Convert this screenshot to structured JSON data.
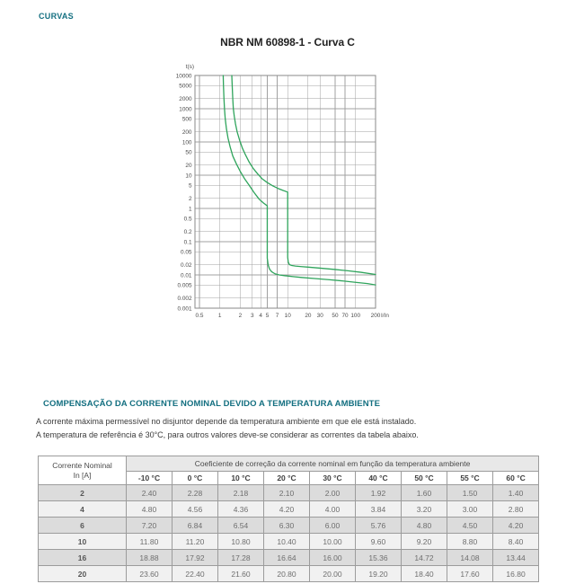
{
  "page": {
    "section_label": "CURVAS",
    "accent_color": "#136f80"
  },
  "chart_data": {
    "type": "line",
    "title": "NBR NM 60898-1 - Curva C",
    "xlabel": "I/In",
    "ylabel": "t(s)",
    "x_scale": "log",
    "y_scale": "log",
    "grid": true,
    "x_range": [
      0.43,
      200
    ],
    "y_range": [
      0.001,
      10000
    ],
    "x_ticks": [
      0.5,
      1,
      2,
      3,
      4,
      5,
      7,
      10,
      20,
      30,
      50,
      70,
      100,
      200
    ],
    "y_ticks": [
      10000,
      5000,
      2000,
      1000,
      500,
      200,
      100,
      50,
      20,
      10,
      5,
      2,
      1,
      0.5,
      0.2,
      0.1,
      0.05,
      0.02,
      0.01,
      0.005,
      0.002,
      0.001
    ],
    "curve_color": "#2fa45c",
    "grid_color": "#a0a0a0",
    "border_color": "#8a8a8a",
    "tick_color": "#4a4a4a",
    "series": [
      {
        "name": "curva-limite-inferior",
        "points": [
          [
            1.12,
            10000
          ],
          [
            1.13,
            5000
          ],
          [
            1.15,
            2000
          ],
          [
            1.17,
            1000
          ],
          [
            1.2,
            500
          ],
          [
            1.25,
            250
          ],
          [
            1.32,
            130
          ],
          [
            1.42,
            70
          ],
          [
            1.55,
            38
          ],
          [
            1.75,
            22
          ],
          [
            2.0,
            13
          ],
          [
            2.3,
            8
          ],
          [
            2.7,
            5
          ],
          [
            3.2,
            3
          ],
          [
            3.8,
            1.9
          ],
          [
            4.4,
            1.45
          ],
          [
            5,
            1.2
          ],
          [
            5,
            0.032
          ],
          [
            5.15,
            0.02
          ],
          [
            5.4,
            0.015
          ],
          [
            5.8,
            0.0125
          ],
          [
            6.5,
            0.0108
          ],
          [
            7.5,
            0.01
          ],
          [
            9,
            0.0095
          ],
          [
            12,
            0.0089
          ],
          [
            16,
            0.0084
          ],
          [
            25,
            0.0078
          ],
          [
            40,
            0.0072
          ],
          [
            60,
            0.0067
          ],
          [
            100,
            0.006
          ],
          [
            150,
            0.0055
          ],
          [
            200,
            0.005
          ]
        ]
      },
      {
        "name": "curva-limite-superior",
        "points": [
          [
            1.5,
            10000
          ],
          [
            1.52,
            5000
          ],
          [
            1.55,
            2000
          ],
          [
            1.58,
            1000
          ],
          [
            1.63,
            600
          ],
          [
            1.7,
            350
          ],
          [
            1.8,
            200
          ],
          [
            1.95,
            115
          ],
          [
            2.15,
            65
          ],
          [
            2.4,
            40
          ],
          [
            2.7,
            25
          ],
          [
            3.1,
            16
          ],
          [
            3.6,
            11
          ],
          [
            4.2,
            7.8
          ],
          [
            5.0,
            6.0
          ],
          [
            6.0,
            4.8
          ],
          [
            7.2,
            4.0
          ],
          [
            8.5,
            3.5
          ],
          [
            10,
            3.1
          ],
          [
            10,
            0.034
          ],
          [
            10.2,
            0.024
          ],
          [
            10.6,
            0.0205
          ],
          [
            11.5,
            0.0192
          ],
          [
            13,
            0.0185
          ],
          [
            16,
            0.0178
          ],
          [
            20,
            0.0172
          ],
          [
            30,
            0.016
          ],
          [
            50,
            0.0146
          ],
          [
            80,
            0.0132
          ],
          [
            120,
            0.012
          ],
          [
            200,
            0.0103
          ]
        ]
      }
    ]
  },
  "compensation": {
    "heading": "COMPENSAÇÃO DA CORRENTE NOMINAL DEVIDO A TEMPERATURA AMBIENTE",
    "line1": "A corrente máxima permessível no disjuntor depende da temperatura ambiente em que ele está instalado.",
    "line2": "A temperatura de referência é 30°C, para outros valores deve-se considerar as correntes da tabela abaixo."
  },
  "table": {
    "col0_header_line1": "Corrente Nominal",
    "col0_header_line2": "In [A]",
    "span_header": "Coeficiente de correção da corrente nominal em função da temperatura ambiente",
    "temp_headers": [
      "-10 °C",
      "0 °C",
      "10 °C",
      "20 °C",
      "30 °C",
      "40 °C",
      "50 °C",
      "55 °C",
      "60 °C"
    ],
    "rows": [
      {
        "in": "2",
        "coefficients": [
          "2.40",
          "2.28",
          "2.18",
          "2.10",
          "2.00",
          "1.92",
          "1.60",
          "1.50",
          "1.40"
        ]
      },
      {
        "in": "4",
        "coefficients": [
          "4.80",
          "4.56",
          "4.36",
          "4.20",
          "4.00",
          "3.84",
          "3.20",
          "3.00",
          "2.80"
        ]
      },
      {
        "in": "6",
        "coefficients": [
          "7.20",
          "6.84",
          "6.54",
          "6.30",
          "6.00",
          "5.76",
          "4.80",
          "4.50",
          "4.20"
        ]
      },
      {
        "in": "10",
        "coefficients": [
          "11.80",
          "11.20",
          "10.80",
          "10.40",
          "10.00",
          "9.60",
          "9.20",
          "8.80",
          "8.40"
        ]
      },
      {
        "in": "16",
        "coefficients": [
          "18.88",
          "17.92",
          "17.28",
          "16.64",
          "16.00",
          "15.36",
          "14.72",
          "14.08",
          "13.44"
        ]
      },
      {
        "in": "20",
        "coefficients": [
          "23.60",
          "22.40",
          "21.60",
          "20.80",
          "20.00",
          "19.20",
          "18.40",
          "17.60",
          "16.80"
        ]
      }
    ]
  }
}
